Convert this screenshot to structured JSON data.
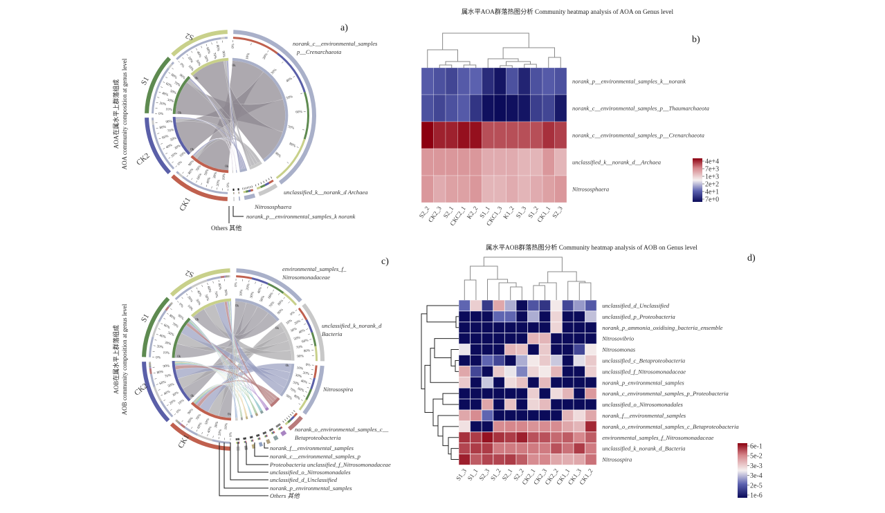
{
  "chart_data": [
    {
      "panel": "a)",
      "type": "chord",
      "ylabel_cn": "AOA在属水平上群落组成",
      "ylabel_en": "AOA community composition at genus level",
      "samples": [
        {
          "name": "CK1",
          "color": "#c0604e"
        },
        {
          "name": "CK2",
          "color": "#5a5fa8"
        },
        {
          "name": "S1",
          "color": "#5e8a50"
        },
        {
          "name": "S2",
          "color": "#c8d08a"
        }
      ],
      "taxa": [
        {
          "name": "norank_c__environmental_samples",
          "name2": "p__Crenarchaeota",
          "color": "#a9b0c9",
          "ribbon": "#8d8890"
        },
        {
          "name": "unclassified_k__norank_d Archaea",
          "color": "#c9c9c9",
          "ribbon": "#a8a6aa"
        },
        {
          "name": "Nitrososphaera",
          "color": "#a9b0c9",
          "ribbon": "#8f92b8"
        },
        {
          "name": "norank_p__environmental_samples_k norank",
          "color": "#a9b0c9",
          "ribbon": "#7a5a8a"
        },
        {
          "name": "Others 其他",
          "color": "#d0d0d0",
          "ribbon": "#7a5a8a"
        }
      ],
      "composition": [
        [
          0.86,
          0.09,
          0.045,
          0.003,
          0.002
        ],
        [
          0.87,
          0.08,
          0.045,
          0.003,
          0.002
        ],
        [
          0.86,
          0.09,
          0.045,
          0.003,
          0.002
        ],
        [
          0.88,
          0.07,
          0.045,
          0.003,
          0.002
        ]
      ],
      "scale_ticks": [
        "0%",
        "10%",
        "20%",
        "30%",
        "40%",
        "50%",
        "60%",
        "70%",
        "80%",
        "90%"
      ],
      "inner_tick": "0k"
    },
    {
      "panel": "b)",
      "type": "heatmap",
      "title": "属水平AOA群落热图分析 Community heatmap analysis of AOA on Genus level",
      "columns": [
        "S2_2",
        "CK2_3",
        "S2_1",
        "CKC2_1",
        "K2_2",
        "S1_1",
        "CKC1_3",
        "K1_2",
        "S1_3",
        "S1_2",
        "CK1_1",
        "S2_3"
      ],
      "rows": [
        "norank_p__environmental_samples_k__norank",
        "norank_c__environmental_samples_p__Thaumarchaeota",
        "norank_c__environmental_samples_p__Crenarchaeota",
        "unclassified_k__norank_d__Archaea",
        "Nitrososphaera"
      ],
      "values": [
        [
          50.0,
          40.0,
          30.0,
          50.0,
          60.0,
          16.0,
          9,
          40.0,
          13.0,
          40.0,
          50.0,
          40.0
        ],
        [
          40.0,
          30.0,
          40.0,
          50.0,
          20.0,
          8,
          7,
          8,
          9,
          25.0,
          30.0,
          10.0
        ],
        [
          40000.0,
          25000.0,
          25000.0,
          32000.0,
          32000.0,
          13000.0,
          13000.0,
          13000.0,
          13000.0,
          13000.0,
          20000.0,
          16000.0
        ],
        [
          4000.0,
          4000.0,
          4000.0,
          4000.0,
          4000.0,
          2500.0,
          2500.0,
          2500.0,
          2000.0,
          2000.0,
          4000.0,
          2000.0
        ],
        [
          4000.0,
          2500.0,
          3200.0,
          3200.0,
          4000.0,
          2000.0,
          2000.0,
          2500.0,
          2000.0,
          2500.0,
          3200.0,
          4000.0
        ]
      ],
      "color_scale": "log",
      "colorbar_range": [
        7,
        40000
      ],
      "colorbar_ticks": [
        "4e+4",
        "7e+3",
        "1e+3",
        "2e+2",
        "4e+1",
        "7e+0"
      ],
      "colors": {
        "low": "#0b0b5a",
        "mid": "#f5f0f0",
        "high": "#8c0010"
      },
      "column_dendrogram": true,
      "row_dendrogram": false
    },
    {
      "panel": "c)",
      "type": "chord",
      "ylabel_cn": "AOB在属水平上群落组成",
      "ylabel_en": "AOB community composition at genus level",
      "samples": [
        {
          "name": "CK1",
          "color": "#c0604e"
        },
        {
          "name": "CK2",
          "color": "#5a5fa8"
        },
        {
          "name": "S1",
          "color": "#5e8a50"
        },
        {
          "name": "S2",
          "color": "#c8d08a"
        }
      ],
      "taxa": [
        {
          "name": "environmental_samples_f_",
          "name2": "Nitrosomonadaceae",
          "color": "#a9b0c9",
          "ribbon": "#9a97a0"
        },
        {
          "name": "unclassified_k_norank_d",
          "name2": "Bacteria",
          "color": "#c8c8c8",
          "ribbon": "#a9a7ab"
        },
        {
          "name": "Nitrosospira",
          "color": "#a9b0c9",
          "ribbon": "#9a9fc0"
        },
        {
          "name": "norank_o_environmental_samples_c__",
          "name2": "Betaproteobacteria",
          "color": "#b97a7a",
          "ribbon": "#b27a7a"
        },
        {
          "name": "norank_f__environmental_samples",
          "color": "#a884c2",
          "ribbon": "#9c6fc0"
        },
        {
          "name": "norank_c__environmental_samples_p",
          "color": "#8aa0a0",
          "ribbon": "#4aa0a8"
        },
        {
          "name": "Proteobacteria unclassified_f_Nitrosomonadaceae",
          "color": "#b0a080",
          "ribbon": "#5e9a4c"
        },
        {
          "name": "unclassified_o_Nitrosomonadales",
          "color": "#8fa0c0",
          "ribbon": "#5ab0c8"
        },
        {
          "name": "unclassified_d_Unclassified",
          "color": "#c0b080",
          "ribbon": "#d0a040"
        },
        {
          "name": "norank_p_environmental_samples",
          "color": "#a0a0a0",
          "ribbon": "#70a060"
        },
        {
          "name": "Others 其他",
          "color": "#d0d0d0",
          "ribbon": "#7090c0"
        }
      ],
      "composition": [
        [
          0.3,
          0.26,
          0.24,
          0.08,
          0.025,
          0.02,
          0.015,
          0.015,
          0.015,
          0.015,
          0.015
        ],
        [
          0.32,
          0.26,
          0.22,
          0.09,
          0.02,
          0.02,
          0.015,
          0.015,
          0.015,
          0.015,
          0.015
        ],
        [
          0.34,
          0.27,
          0.22,
          0.07,
          0.02,
          0.015,
          0.015,
          0.015,
          0.01,
          0.01,
          0.015
        ],
        [
          0.33,
          0.28,
          0.23,
          0.06,
          0.02,
          0.015,
          0.015,
          0.01,
          0.01,
          0.01,
          0.02
        ]
      ],
      "scale_ticks": [
        "0%",
        "10%",
        "20%",
        "30%",
        "40%",
        "50%",
        "60%",
        "70%",
        "80%",
        "90%"
      ],
      "inner_tick": "0k"
    },
    {
      "panel": "d)",
      "type": "heatmap",
      "title": "属水平AOB群落热图分析 Community heatmap analysis of AOB on Genus level",
      "columns": [
        "S1_3",
        "S1_1",
        "S2_3",
        "S1_2",
        "S2_1",
        "S2_2",
        "CK2_1",
        "CK2_3",
        "CK2_2",
        "CK1_1",
        "CK1_3",
        "CK1_2"
      ],
      "rows": [
        "unclassified_d_Unclassified",
        "unclassified_p_Proteobacteria",
        "norank_p_ammonia_oxidising_bacteria_ensemble",
        "Nitrosovibrio",
        "Nitrosomonas",
        "unclassified_c_Betaproteobacteria",
        "unclassified_f_Nitrosomonadaceae",
        "norank_p_environmental_samples",
        "norank_c_environmental_samples_p_Proteobacteria",
        "unclassified_o_Nitrosomonadales",
        "norank_f__environmental_samples",
        "norank_o_environmental_samples_c_Betaproteobacteria",
        "environmental_samples_f_Nitrosomonadaceae",
        "unclassified_k_norank_d_Bacteria",
        "Nitrosospira"
      ],
      "values": [
        [
          3e-05,
          0.0025,
          6e-06,
          0.01,
          0.00016,
          1e-06,
          1.6e-05,
          5e-06,
          0.001,
          1e-05,
          0.0001,
          2e-05
        ],
        [
          1e-06,
          1e-06,
          1e-06,
          3e-05,
          3e-05,
          1e-06,
          0.00016,
          1e-06,
          0.002,
          1e-06,
          1e-06,
          0.00025
        ],
        [
          1e-06,
          1e-06,
          1e-06,
          1e-06,
          1e-06,
          1e-06,
          1e-06,
          1e-06,
          0.002,
          1e-06,
          1e-06,
          1e-06
        ],
        [
          1e-06,
          1e-06,
          1e-06,
          1e-06,
          1e-06,
          1e-06,
          0.006,
          0.006,
          1e-06,
          1e-06,
          1e-06,
          1e-06
        ],
        [
          0.0006,
          1e-06,
          1e-06,
          1e-06,
          0.006,
          0.004,
          1e-06,
          0.003,
          1e-06,
          1e-06,
          1e-05,
          0.001
        ],
        [
          1e-06,
          1e-06,
          3e-05,
          1e-05,
          1e-06,
          0.00016,
          0.001,
          0.003,
          0.0003,
          1e-06,
          0.0005,
          0.003
        ],
        [
          0.01,
          1e-05,
          1e-06,
          0.003,
          0.0006,
          6e-05,
          0.002,
          0.001,
          0.006,
          1e-06,
          1e-06,
          0.0025
        ],
        [
          0.003,
          1e-06,
          0.0003,
          1e-06,
          0.0016,
          0.004,
          1e-06,
          0.005,
          1e-06,
          1e-06,
          1e-06,
          1e-06
        ],
        [
          1e-06,
          1e-06,
          1e-06,
          1e-06,
          1e-06,
          1e-06,
          0.0025,
          1e-06,
          0.0016,
          0.006,
          1e-06,
          0.016
        ],
        [
          1e-06,
          1e-06,
          0.01,
          1e-06,
          0.004,
          1e-06,
          0.002,
          0.005,
          1e-06,
          1e-06,
          1e-06,
          1e-06
        ],
        [
          0.01,
          0.025,
          3e-05,
          1e-06,
          1e-06,
          1e-06,
          1e-06,
          1e-06,
          1e-06,
          0.006,
          0.0016,
          0.01
        ],
        [
          0.0013,
          1e-06,
          1e-06,
          0.025,
          0.03,
          0.03,
          0.02,
          0.025,
          0.025,
          0.01,
          0.006,
          0.25
        ],
        [
          0.2,
          0.16,
          0.4,
          0.2,
          0.16,
          0.3,
          0.1,
          0.1,
          0.06,
          0.08,
          0.03,
          0.08
        ],
        [
          0.13,
          0.16,
          0.16,
          0.04,
          0.04,
          0.04,
          0.04,
          0.04,
          0.1,
          0.05,
          0.16,
          0.04
        ],
        [
          0.3,
          0.08,
          0.13,
          0.13,
          0.16,
          0.08,
          0.025,
          0.03,
          0.01,
          0.008,
          0.01,
          0.05
        ]
      ],
      "color_scale": "log",
      "colorbar_range": [
        1e-06,
        0.6
      ],
      "colorbar_ticks": [
        "6e-1",
        "5e-2",
        "3e-3",
        "3e-4",
        "2e-5",
        "1e-6"
      ],
      "colors": {
        "low": "#0b0b5a",
        "mid": "#f5f0f0",
        "high": "#8c0010"
      },
      "column_dendrogram": true,
      "row_dendrogram": true
    }
  ]
}
